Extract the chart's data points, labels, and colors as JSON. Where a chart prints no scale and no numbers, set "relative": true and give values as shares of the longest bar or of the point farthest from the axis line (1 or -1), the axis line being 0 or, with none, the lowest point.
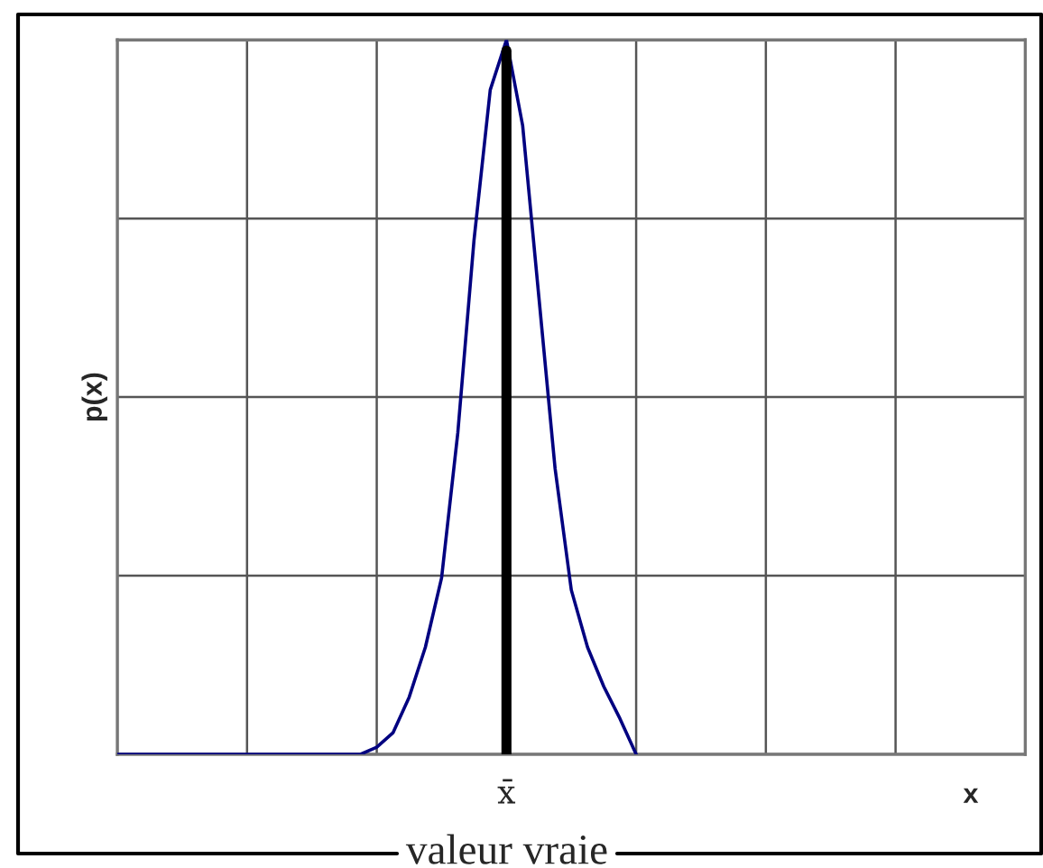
{
  "chart_data": {
    "type": "line",
    "relative": true,
    "xlabel": "x",
    "ylabel": "p(x)",
    "categories": [
      null,
      null,
      null,
      null,
      null,
      null,
      null,
      null,
      null,
      null,
      null,
      null,
      null,
      null,
      null,
      null,
      null,
      null,
      null,
      null,
      null,
      null,
      null,
      null,
      null,
      null,
      null,
      null,
      null,
      null,
      null,
      null,
      null,
      null,
      null,
      null,
      null,
      null,
      null,
      null,
      null,
      null,
      null,
      null,
      null,
      null,
      null,
      null,
      null,
      null,
      null,
      null,
      null,
      null,
      null,
      null,
      null
    ],
    "grid": true,
    "tick_labels": false,
    "marker": "none",
    "line_style": "solid",
    "series": [
      {
        "color": "#000080",
        "values": [
          0,
          0,
          0,
          0,
          0,
          0,
          0,
          0,
          0,
          0,
          0,
          0,
          0,
          0,
          0,
          0,
          0.01,
          0.03,
          0.08,
          0.15,
          0.247,
          0.45,
          0.72,
          0.93,
          1,
          0.88,
          0.64,
          0.4,
          0.23,
          0.15,
          0.095,
          0.05,
          0,
          null,
          null,
          null,
          null,
          null,
          null,
          null,
          null,
          null,
          null,
          null,
          null,
          null,
          null,
          null,
          null,
          null,
          null,
          null,
          null,
          null,
          null,
          null,
          null
        ]
      }
    ],
    "annotations": [
      "x̄",
      "valeur vraie"
    ]
  }
}
